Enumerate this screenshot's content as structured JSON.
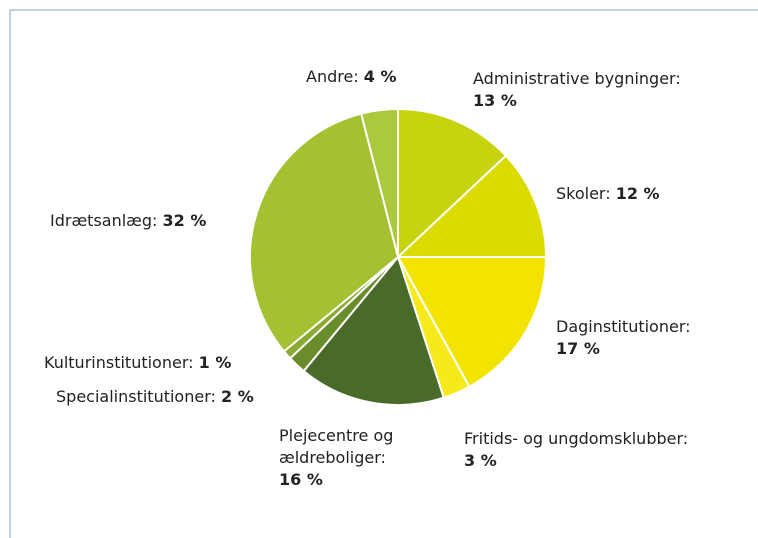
{
  "chart_data": {
    "type": "pie",
    "categories": [
      "Administrative bygninger:",
      "Skoler:",
      "Daginstitutioner:",
      "Fritids- og ungdomsklubber:",
      "Plejecentre og ældreboliger:",
      "Specialinstitutioner:",
      "Kulturinstitutioner:",
      "Idrætsanlæg:",
      "Andre:"
    ],
    "values": [
      13,
      12,
      17,
      3,
      16,
      2,
      1,
      32,
      4
    ],
    "value_labels": [
      "13 %",
      "12 %",
      "17 %",
      "3 %",
      "16 %",
      "2 %",
      "1 %",
      "32 %",
      "4 %"
    ],
    "colors": [
      "#c6d30e",
      "#dcdb00",
      "#f2e400",
      "#f7ea1c",
      "#4a6a2a",
      "#6a8d2c",
      "#8aab33",
      "#a4c131",
      "#abc93c"
    ]
  }
}
